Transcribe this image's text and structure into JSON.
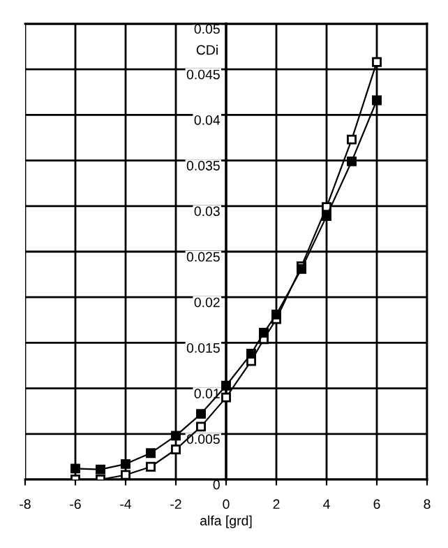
{
  "chart_data": {
    "type": "line",
    "xlabel": "alfa [grd]",
    "ylabel": "CDi",
    "x": [
      -6,
      -5,
      -4,
      -3,
      -2,
      -1,
      0,
      1,
      1.5,
      2,
      3,
      4,
      5,
      6
    ],
    "series": [
      {
        "color": "#000000",
        "marker": "square",
        "values": [
          0.0012,
          0.0011,
          0.0017,
          0.0029,
          0.0048,
          0.0072,
          0.0103,
          0.0138,
          0.0161,
          0.0181,
          0.0231,
          0.0289,
          0.0349,
          0.0416
        ]
      },
      {
        "color": "#000000",
        "marker": "square_open",
        "values": [
          0.0,
          0.0,
          0.0005,
          0.0014,
          0.0033,
          0.0058,
          0.009,
          0.013,
          0.0154,
          0.0176,
          0.0234,
          0.0299,
          0.0373,
          0.0458
        ]
      }
    ],
    "xlim": [
      -8,
      8
    ],
    "xticks": [
      -8,
      -6,
      -4,
      -2,
      0,
      2,
      4,
      6,
      8
    ],
    "ylim": [
      0,
      0.05
    ],
    "yticks": [
      0,
      0.005,
      0.01,
      0.015,
      0.02,
      0.025,
      0.03,
      0.035,
      0.04,
      0.045,
      0.05
    ],
    "grid": true,
    "line_style": "solid",
    "legend": false
  }
}
